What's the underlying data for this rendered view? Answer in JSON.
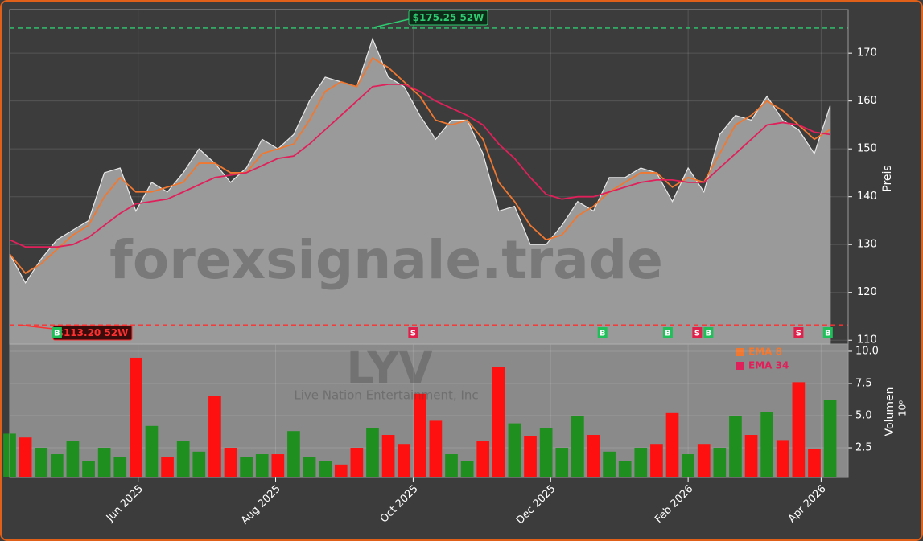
{
  "chart_data": [
    {
      "type": "line",
      "x": [
        0,
        7,
        14,
        21,
        28,
        35,
        42,
        49,
        56,
        63,
        70,
        77,
        84,
        91,
        98,
        105,
        112,
        119,
        126,
        133,
        140,
        147,
        154,
        161,
        168,
        175,
        182,
        189,
        196,
        203,
        210,
        217,
        224,
        231,
        238,
        245,
        252,
        259,
        266,
        273,
        280,
        287,
        294,
        301,
        308,
        315,
        322,
        329,
        336,
        343,
        350,
        357,
        364
      ],
      "xlim": [
        0,
        372
      ],
      "series": [
        {
          "color": "#9a9a9a",
          "values": [
            128,
            122,
            127,
            131,
            133,
            135,
            145,
            146,
            137,
            143,
            141,
            145,
            150,
            147,
            143,
            146,
            152,
            150,
            153,
            160,
            165,
            164,
            163,
            173,
            165,
            163,
            157,
            152,
            156,
            156,
            149,
            137,
            138,
            130,
            130,
            134,
            139,
            137,
            144,
            144,
            146,
            145,
            139,
            146,
            141,
            153,
            157,
            156,
            161,
            156,
            154,
            149,
            159
          ]
        },
        {
          "name": "EMA 8",
          "color": "#f07830",
          "values": [
            128,
            124,
            126,
            129,
            132,
            134,
            140,
            144,
            141,
            141,
            142,
            143,
            147,
            147,
            145,
            145,
            149,
            150,
            151,
            156,
            162,
            164,
            163,
            169,
            167,
            164,
            161,
            156,
            155,
            156,
            152,
            143,
            139,
            134,
            131,
            132,
            136,
            138,
            141,
            143,
            145,
            145,
            142,
            144,
            143,
            149,
            155,
            157,
            160,
            158,
            155,
            152,
            154
          ]
        },
        {
          "name": "EMA 34",
          "color": "#e0205a",
          "values": [
            131,
            129.5,
            129.5,
            129.5,
            130,
            131.5,
            134,
            136.5,
            138.5,
            139,
            139.5,
            141,
            142.5,
            144,
            144.5,
            145,
            146.5,
            148,
            148.5,
            151,
            154,
            157,
            160,
            163,
            163.5,
            163.5,
            162,
            160,
            158.5,
            157,
            155,
            151,
            148,
            144,
            140.5,
            139.5,
            140,
            140,
            141,
            142,
            143,
            143.5,
            143.5,
            143,
            143,
            146,
            149,
            152,
            155,
            155.5,
            155,
            153.5,
            153
          ]
        }
      ],
      "ylim": [
        109.2,
        179.1
      ],
      "yticks": [
        110,
        120,
        130,
        140,
        150,
        160,
        170
      ],
      "y_label": "Preis",
      "grid": true,
      "legend": "upper right",
      "high_52w": {
        "value": 175.25,
        "label": "$175.25 52W",
        "color": "#2ecc71"
      },
      "low_52w": {
        "value": 113.2,
        "label": "$113.20 52W",
        "color": "#ff3030"
      },
      "signals": {
        "buy_color": "#1fbf5a",
        "sell_color": "#e0204a",
        "items": [
          {
            "label": "B",
            "x": 21
          },
          {
            "label": "S",
            "x": 179
          },
          {
            "label": "B",
            "x": 263
          },
          {
            "label": "B",
            "x": 292
          },
          {
            "label": "S",
            "x": 305
          },
          {
            "label": "B",
            "x": 310
          },
          {
            "label": "S",
            "x": 350
          },
          {
            "label": "B",
            "x": 363
          }
        ]
      },
      "watermark": "forexsignale.trade",
      "ticker": "LYV",
      "company": "Live Nation Entertainment, Inc"
    },
    {
      "type": "bar",
      "x": [
        0,
        7,
        14,
        21,
        28,
        35,
        42,
        49,
        56,
        63,
        70,
        77,
        84,
        91,
        98,
        105,
        112,
        119,
        126,
        133,
        140,
        147,
        154,
        161,
        168,
        175,
        182,
        189,
        196,
        203,
        210,
        217,
        224,
        231,
        238,
        245,
        252,
        259,
        266,
        273,
        280,
        287,
        294,
        301,
        308,
        315,
        322,
        329,
        336,
        343,
        350,
        357,
        364
      ],
      "xlim": [
        0,
        372
      ],
      "values": [
        3.6,
        3.3,
        2.5,
        2.0,
        3.0,
        1.5,
        2.5,
        1.8,
        9.5,
        4.2,
        1.8,
        3.0,
        2.2,
        6.5,
        2.5,
        1.8,
        2.0,
        2.0,
        3.8,
        1.8,
        1.5,
        1.2,
        2.5,
        4.0,
        3.5,
        2.8,
        6.7,
        4.6,
        2.0,
        1.5,
        3.0,
        8.8,
        4.4,
        3.4,
        4.0,
        2.5,
        5.0,
        3.5,
        2.2,
        1.5,
        2.5,
        2.8,
        5.2,
        2.0,
        2.8,
        2.5,
        5.0,
        3.5,
        5.3,
        3.1,
        7.6,
        2.4,
        6.2
      ],
      "up_color": "#1f8f1f",
      "down_color": "#ff1010",
      "ylim": [
        0.19,
        10.56
      ],
      "yticks": [
        {
          "value": 10,
          "label": "10.0"
        },
        7.5,
        {
          "value": 5,
          "label": "5.0"
        },
        2.5
      ],
      "y_label": "Volumen",
      "y_scale": "10⁶",
      "xticks": [
        {
          "value": 57,
          "label": "Jun 2025"
        },
        {
          "value": 118,
          "label": "Aug 2025"
        },
        {
          "value": 179,
          "label": "Oct 2025"
        },
        {
          "value": 240,
          "label": "Dec 2025"
        },
        {
          "value": 301,
          "label": "Feb 2026"
        },
        {
          "value": 360,
          "label": "Apr 2026"
        }
      ],
      "grid": true
    }
  ]
}
